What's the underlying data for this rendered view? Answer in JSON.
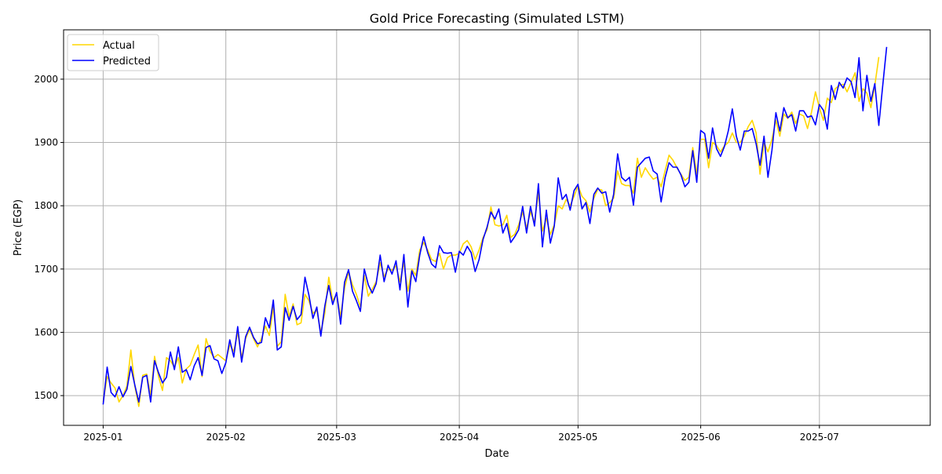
{
  "chart_data": {
    "type": "line",
    "title": "Gold Price Forecasting (Simulated LSTM)",
    "xlabel": "Date",
    "ylabel": "Price (EGP)",
    "x_start": "2025-01-01",
    "x_step": "1 day",
    "xlim": [
      "2024-12-22",
      "2025-07-29"
    ],
    "ylim": [
      1453,
      2078
    ],
    "x_ticks": [
      "2025-01",
      "2025-02",
      "2025-03",
      "2025-04",
      "2025-05",
      "2025-06",
      "2025-07"
    ],
    "x_tick_dates": [
      "2025-01-01",
      "2025-02-01",
      "2025-03-01",
      "2025-04-01",
      "2025-05-01",
      "2025-06-01",
      "2025-07-01"
    ],
    "y_ticks": [
      1500,
      1600,
      1700,
      1800,
      1900,
      2000
    ],
    "grid": true,
    "legend": "upper-left",
    "series": [
      {
        "name": "Actual",
        "color": "#ffd700",
        "values": [
          1490,
          1530,
          1520,
          1512,
          1490,
          1500,
          1515,
          1572,
          1515,
          1483,
          1532,
          1534,
          1500,
          1562,
          1530,
          1508,
          1560,
          1555,
          1545,
          1560,
          1520,
          1542,
          1548,
          1565,
          1580,
          1530,
          1590,
          1570,
          1560,
          1565,
          1560,
          1555,
          1580,
          1570,
          1600,
          1560,
          1590,
          1605,
          1590,
          1577,
          1590,
          1610,
          1595,
          1640,
          1578,
          1585,
          1660,
          1625,
          1645,
          1612,
          1615,
          1660,
          1650,
          1630,
          1635,
          1600,
          1630,
          1687,
          1650,
          1660,
          1625,
          1670,
          1695,
          1675,
          1660,
          1640,
          1690,
          1657,
          1668,
          1680,
          1710,
          1688,
          1700,
          1698,
          1705,
          1680,
          1710,
          1665,
          1700,
          1690,
          1730,
          1742,
          1730,
          1715,
          1712,
          1725,
          1700,
          1718,
          1722,
          1722,
          1725,
          1740,
          1745,
          1735,
          1715,
          1730,
          1750,
          1762,
          1798,
          1770,
          1768,
          1770,
          1785,
          1750,
          1755,
          1770,
          1790,
          1765,
          1790,
          1775,
          1820,
          1760,
          1780,
          1755,
          1770,
          1800,
          1795,
          1810,
          1800,
          1815,
          1832,
          1815,
          1808,
          1790,
          1812,
          1826,
          1825,
          1800,
          1805,
          1812,
          1855,
          1835,
          1832,
          1832,
          1820,
          1875,
          1845,
          1860,
          1850,
          1842,
          1845,
          1830,
          1855,
          1880,
          1872,
          1860,
          1850,
          1840,
          1845,
          1892,
          1850,
          1905,
          1905,
          1860,
          1900,
          1895,
          1885,
          1895,
          1900,
          1915,
          1900,
          1900,
          1910,
          1925,
          1935,
          1915,
          1850,
          1900,
          1885,
          1905,
          1935,
          1910,
          1945,
          1938,
          1948,
          1930,
          1945,
          1942,
          1922,
          1948,
          1980,
          1955,
          1935,
          1970,
          1963,
          1985,
          1990,
          1992,
          1980,
          1995,
          2010,
          1965,
          1985,
          1978,
          1955,
          1990,
          2035
        ]
      },
      {
        "name": "Predicted",
        "color": "#0000ff",
        "values": [
          1486,
          1545,
          1505,
          1498,
          1514,
          1498,
          1510,
          1546,
          1517,
          1490,
          1529,
          1532,
          1490,
          1555,
          1536,
          1520,
          1529,
          1569,
          1541,
          1577,
          1537,
          1541,
          1525,
          1547,
          1560,
          1532,
          1576,
          1579,
          1558,
          1555,
          1535,
          1552,
          1588,
          1561,
          1609,
          1553,
          1593,
          1608,
          1592,
          1582,
          1584,
          1623,
          1607,
          1651,
          1572,
          1577,
          1639,
          1619,
          1641,
          1620,
          1628,
          1687,
          1659,
          1622,
          1640,
          1594,
          1641,
          1674,
          1644,
          1663,
          1613,
          1679,
          1699,
          1665,
          1650,
          1633,
          1700,
          1675,
          1662,
          1677,
          1722,
          1680,
          1706,
          1692,
          1713,
          1667,
          1723,
          1640,
          1697,
          1680,
          1722,
          1751,
          1726,
          1708,
          1702,
          1737,
          1726,
          1725,
          1726,
          1695,
          1728,
          1722,
          1736,
          1726,
          1696,
          1715,
          1747,
          1766,
          1790,
          1779,
          1795,
          1757,
          1772,
          1742,
          1751,
          1762,
          1799,
          1757,
          1799,
          1768,
          1835,
          1735,
          1793,
          1741,
          1768,
          1844,
          1810,
          1818,
          1793,
          1824,
          1834,
          1795,
          1805,
          1772,
          1818,
          1828,
          1820,
          1822,
          1790,
          1818,
          1882,
          1845,
          1839,
          1845,
          1801,
          1861,
          1868,
          1875,
          1877,
          1855,
          1850,
          1806,
          1844,
          1868,
          1861,
          1861,
          1849,
          1830,
          1837,
          1887,
          1837,
          1919,
          1914,
          1875,
          1923,
          1890,
          1878,
          1894,
          1919,
          1953,
          1910,
          1888,
          1918,
          1918,
          1922,
          1898,
          1864,
          1910,
          1845,
          1888,
          1947,
          1918,
          1955,
          1939,
          1944,
          1918,
          1950,
          1950,
          1940,
          1942,
          1928,
          1960,
          1951,
          1921,
          1990,
          1968,
          1995,
          1986,
          2002,
          1996,
          1971,
          2034,
          1950,
          2006,
          1965,
          1993,
          1927,
          1990,
          2051
        ]
      }
    ]
  }
}
